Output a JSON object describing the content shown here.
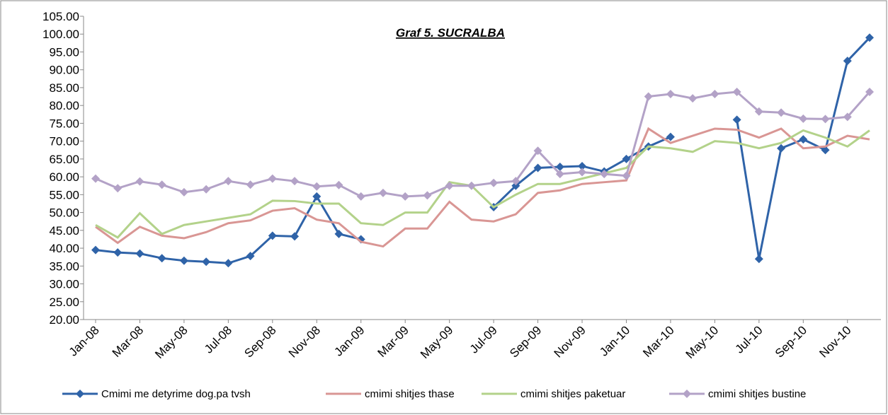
{
  "chart_data": {
    "type": "line",
    "title": "Graf 5. SUCRALBA",
    "categories": [
      "Jan-08",
      null,
      "Mar-08",
      null,
      "May-08",
      null,
      "Jul-08",
      null,
      "Sep-08",
      null,
      "Nov-08",
      null,
      "Jan-09",
      null,
      "Mar-09",
      null,
      "May-09",
      null,
      "Jul-09",
      null,
      "Sep-09",
      null,
      "Nov-09",
      null,
      "Jan-10",
      null,
      "Mar-10",
      null,
      "May-10",
      null,
      "Jul-10",
      null,
      "Sep-10",
      null,
      "Nov-10",
      null
    ],
    "series": [
      {
        "name": "Cmimi me detyrime dog.pa tvsh",
        "color": "#2f63a8",
        "marker": "diamond",
        "values": [
          39.5,
          38.8,
          38.5,
          37.2,
          36.5,
          36.2,
          35.8,
          37.8,
          43.5,
          43.3,
          54.5,
          44,
          42.5,
          null,
          null,
          null,
          null,
          null,
          51.5,
          57.5,
          62.5,
          62.8,
          63,
          61.5,
          65,
          68.5,
          71.2,
          null,
          null,
          76,
          37,
          68,
          70.5,
          67.5,
          92.5,
          99
        ]
      },
      {
        "name": "cmimi shitjes thase",
        "color": "#d99694",
        "marker": "none",
        "values": [
          46,
          41.5,
          46,
          43.5,
          42.8,
          44.5,
          47,
          47.8,
          50.5,
          51.2,
          48,
          47,
          41.8,
          40.5,
          45.5,
          45.5,
          53,
          48,
          47.5,
          49.5,
          55.5,
          56.2,
          58,
          58.5,
          59,
          73.5,
          69.5,
          71.5,
          73.5,
          73.2,
          71,
          73.5,
          68,
          68.5,
          71.5,
          70.5
        ]
      },
      {
        "name": "cmimi shitjes paketuar",
        "color": "#b3d28a",
        "marker": "none",
        "values": [
          46.5,
          43,
          49.8,
          44,
          46.5,
          47.5,
          48.5,
          49.5,
          53.3,
          53.2,
          52.5,
          52.5,
          47,
          46.5,
          50,
          50,
          58.5,
          57.5,
          51.5,
          55,
          58,
          58,
          59.5,
          61,
          62.5,
          68.5,
          68,
          67,
          70,
          69.5,
          68,
          69.5,
          73,
          71,
          68.5,
          73
        ]
      },
      {
        "name": "cmimi shitjes bustine",
        "color": "#b3a2c7",
        "marker": "diamond",
        "values": [
          59.5,
          56.8,
          58.7,
          57.8,
          55.7,
          56.5,
          58.8,
          57.8,
          59.5,
          58.8,
          57.3,
          57.7,
          54.5,
          55.5,
          54.5,
          54.8,
          57.5,
          57.5,
          58.3,
          58.8,
          67.3,
          60.8,
          61.3,
          60.8,
          60.3,
          82.5,
          83.2,
          82,
          83.2,
          83.8,
          78.3,
          78,
          76.3,
          76.2,
          76.8,
          83.8
        ]
      }
    ],
    "ylim": [
      20,
      105
    ],
    "yticks": [
      {
        "value": 20,
        "label": "20.00"
      },
      {
        "value": 25,
        "label": "25.00"
      },
      {
        "value": 30,
        "label": "30.00"
      },
      {
        "value": 35,
        "label": "35.00"
      },
      {
        "value": 40,
        "label": "40.00"
      },
      {
        "value": 45,
        "label": "45.00"
      },
      {
        "value": 50,
        "label": "50.00"
      },
      {
        "value": 55,
        "label": "55.00"
      },
      {
        "value": 60,
        "label": "60.00"
      },
      {
        "value": 65,
        "label": "65.00"
      },
      {
        "value": 70,
        "label": "70.00"
      },
      {
        "value": 75,
        "label": "75.00"
      },
      {
        "value": 80,
        "label": "80.00"
      },
      {
        "value": 85,
        "label": "85.00"
      },
      {
        "value": 90,
        "label": "90.00"
      },
      {
        "value": 95,
        "label": "95.00"
      },
      {
        "value": 100,
        "label": "100.00"
      },
      {
        "value": 105,
        "label": "105.00"
      }
    ],
    "grid": false,
    "legend": "bottom"
  }
}
